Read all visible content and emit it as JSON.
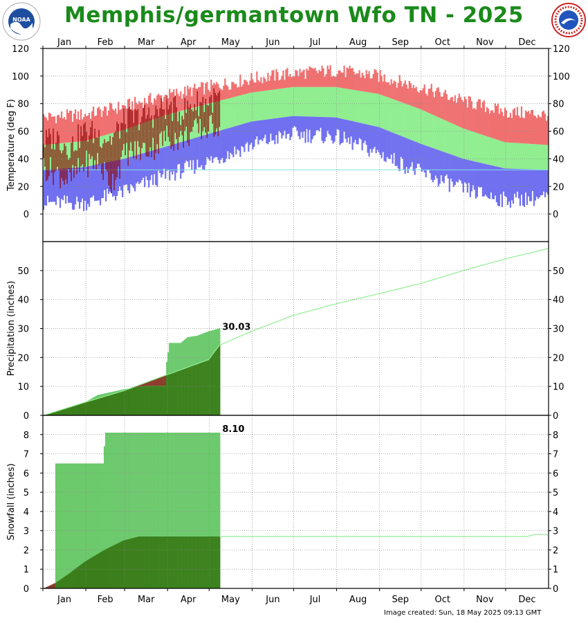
{
  "title": "Memphis/germantown Wfo TN - 2025",
  "footer": "Image created: Sun, 18 May 2025 09:13 GMT",
  "logos": {
    "left": "noaa-logo",
    "right": "national-weather-service-logo"
  },
  "colors": {
    "record_high": "#f07070",
    "normal_range": "#90ee90",
    "record_low": "#7070f0",
    "observed": "#8b0000",
    "precip_observed": "#6cc96c",
    "precip_normal": "#3a7d1a",
    "normal_line": "#90ee90",
    "freezing_line": "#80e0e0",
    "title": "#1a8a1a"
  },
  "chart_data": [
    {
      "type": "bar",
      "panel": "temperature",
      "ylabel": "Temperature (deg F)",
      "ylim": [
        -20,
        120
      ],
      "yticks": [
        0,
        20,
        40,
        60,
        80,
        100,
        120
      ],
      "months_top": [
        "Jan",
        "Feb",
        "Mar",
        "Apr",
        "May",
        "Jun",
        "Jul",
        "Aug",
        "Sep",
        "Oct",
        "Nov",
        "Dec"
      ],
      "freezing_line": 32,
      "record_high_anchors": {
        "day": [
          1,
          31,
          59,
          90,
          120,
          151,
          181,
          212,
          243,
          273,
          304,
          334,
          365
        ],
        "value": [
          70,
          72,
          78,
          86,
          92,
          98,
          102,
          104,
          100,
          92,
          82,
          74,
          72
        ]
      },
      "normal_high_anchors": {
        "day": [
          1,
          31,
          59,
          90,
          120,
          151,
          181,
          212,
          243,
          273,
          304,
          334,
          365
        ],
        "value": [
          50,
          53,
          61,
          72,
          80,
          88,
          92,
          92,
          87,
          76,
          62,
          52,
          50
        ]
      },
      "normal_low_anchors": {
        "day": [
          1,
          31,
          59,
          90,
          120,
          151,
          181,
          212,
          243,
          273,
          304,
          334,
          365
        ],
        "value": [
          32,
          34,
          40,
          49,
          58,
          67,
          71,
          70,
          63,
          51,
          40,
          33,
          32
        ]
      },
      "record_low_anchors": {
        "day": [
          1,
          31,
          59,
          90,
          120,
          151,
          181,
          212,
          243,
          273,
          304,
          334,
          365
        ],
        "value": [
          8,
          8,
          16,
          28,
          38,
          50,
          58,
          56,
          44,
          30,
          18,
          10,
          12
        ]
      },
      "observed_anchors": {
        "day": [
          1,
          10,
          20,
          30,
          40,
          50,
          60,
          70,
          80,
          90,
          100,
          110,
          120,
          128
        ],
        "high": [
          52,
          56,
          48,
          60,
          58,
          54,
          68,
          70,
          72,
          78,
          74,
          80,
          82,
          84
        ],
        "low": [
          34,
          30,
          24,
          36,
          38,
          22,
          44,
          46,
          48,
          56,
          54,
          60,
          62,
          66
        ]
      }
    },
    {
      "type": "area",
      "panel": "precipitation",
      "ylabel": "Precipitation (inches)",
      "ylim": [
        0,
        60
      ],
      "yticks": [
        0,
        10,
        20,
        30,
        40,
        50
      ],
      "label": "30.03",
      "normal_cumulative": {
        "day": [
          1,
          31,
          59,
          90,
          120,
          128,
          151,
          181,
          212,
          243,
          273,
          304,
          334,
          365
        ],
        "value": [
          0,
          4.5,
          8.5,
          14,
          19.2,
          24.2,
          29,
          34.5,
          38.5,
          42,
          45.5,
          50,
          54,
          57.6
        ]
      },
      "observed_cumulative": {
        "day": [
          1,
          15,
          31,
          40,
          59,
          75,
          89,
          90,
          92,
          100,
          105,
          112,
          120,
          128
        ],
        "value": [
          0,
          2,
          4.5,
          7,
          9,
          10.2,
          10.2,
          18.5,
          25,
          25,
          27,
          27.5,
          29,
          30.03
        ]
      }
    },
    {
      "type": "area",
      "panel": "snowfall",
      "ylabel": "Snowfall (inches)",
      "ylim": [
        0,
        9
      ],
      "yticks": [
        0,
        1,
        2,
        3,
        4,
        5,
        6,
        7,
        8
      ],
      "months_bottom": [
        "Jan",
        "Feb",
        "Mar",
        "Apr",
        "May",
        "Jun",
        "Jul",
        "Aug",
        "Sep",
        "Oct",
        "Nov",
        "Dec"
      ],
      "label": "8.10",
      "normal_cumulative": {
        "day": [
          1,
          10,
          20,
          31,
          45,
          59,
          70,
          75,
          128,
          350,
          355,
          365
        ],
        "value": [
          0,
          0.3,
          0.8,
          1.4,
          2.0,
          2.5,
          2.7,
          2.7,
          2.7,
          2.7,
          2.8,
          2.8
        ]
      },
      "observed_cumulative": {
        "day": [
          1,
          9,
          10,
          44,
          45,
          46,
          128
        ],
        "value": [
          0,
          0,
          6.5,
          6.5,
          7.4,
          8.1,
          8.1
        ]
      }
    }
  ]
}
